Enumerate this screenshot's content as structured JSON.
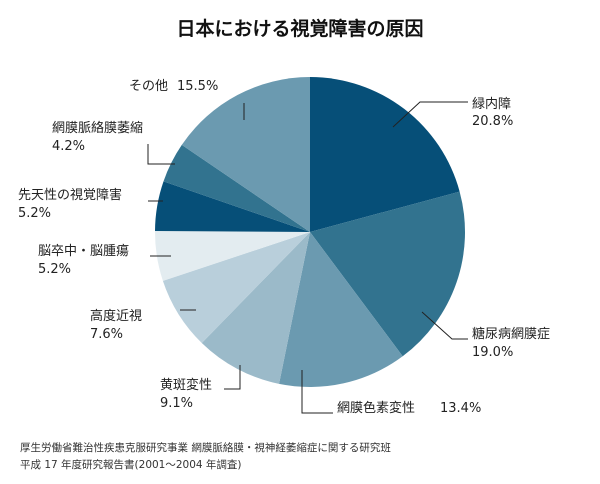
{
  "chart_data": {
    "type": "pie",
    "title": "日本における視覚障害の原因",
    "start": "12 o'clock",
    "direction": "clockwise",
    "slices": [
      {
        "name": "緑内障",
        "value": 20.8,
        "value_label": "20.8%",
        "color": "#064f78"
      },
      {
        "name": "糖尿病網膜症",
        "value": 19.0,
        "value_label": "19.0%",
        "color": "#32738f"
      },
      {
        "name": "網膜色素変性",
        "value": 13.4,
        "value_label": "13.4%",
        "color": "#6b9ab0"
      },
      {
        "name": "黄斑変性",
        "value": 9.1,
        "value_label": "9.1%",
        "color": "#9bbac9"
      },
      {
        "name": "高度近視",
        "value": 7.6,
        "value_label": "7.6%",
        "color": "#b9cfdb"
      },
      {
        "name": "脳卒中・脳腫瘍",
        "value": 5.2,
        "value_label": "5.2%",
        "color": "#e3ecf0"
      },
      {
        "name": "先天性の視覚障害",
        "value": 5.2,
        "value_label": "5.2%",
        "color": "#064f78"
      },
      {
        "name": "網膜脈絡膜萎縮",
        "value": 4.2,
        "value_label": "4.2%",
        "color": "#32738f"
      },
      {
        "name": "その他",
        "value": 15.5,
        "value_label": "15.5%",
        "color": "#6b9ab0"
      }
    ]
  },
  "source": {
    "line1": "厚生労働省難治性疾患克服研究事業 網膜脈絡膜・視神経萎縮症に関する研究班",
    "line2": "平成 17 年度研究報告書(2001〜2004 年調査)"
  }
}
